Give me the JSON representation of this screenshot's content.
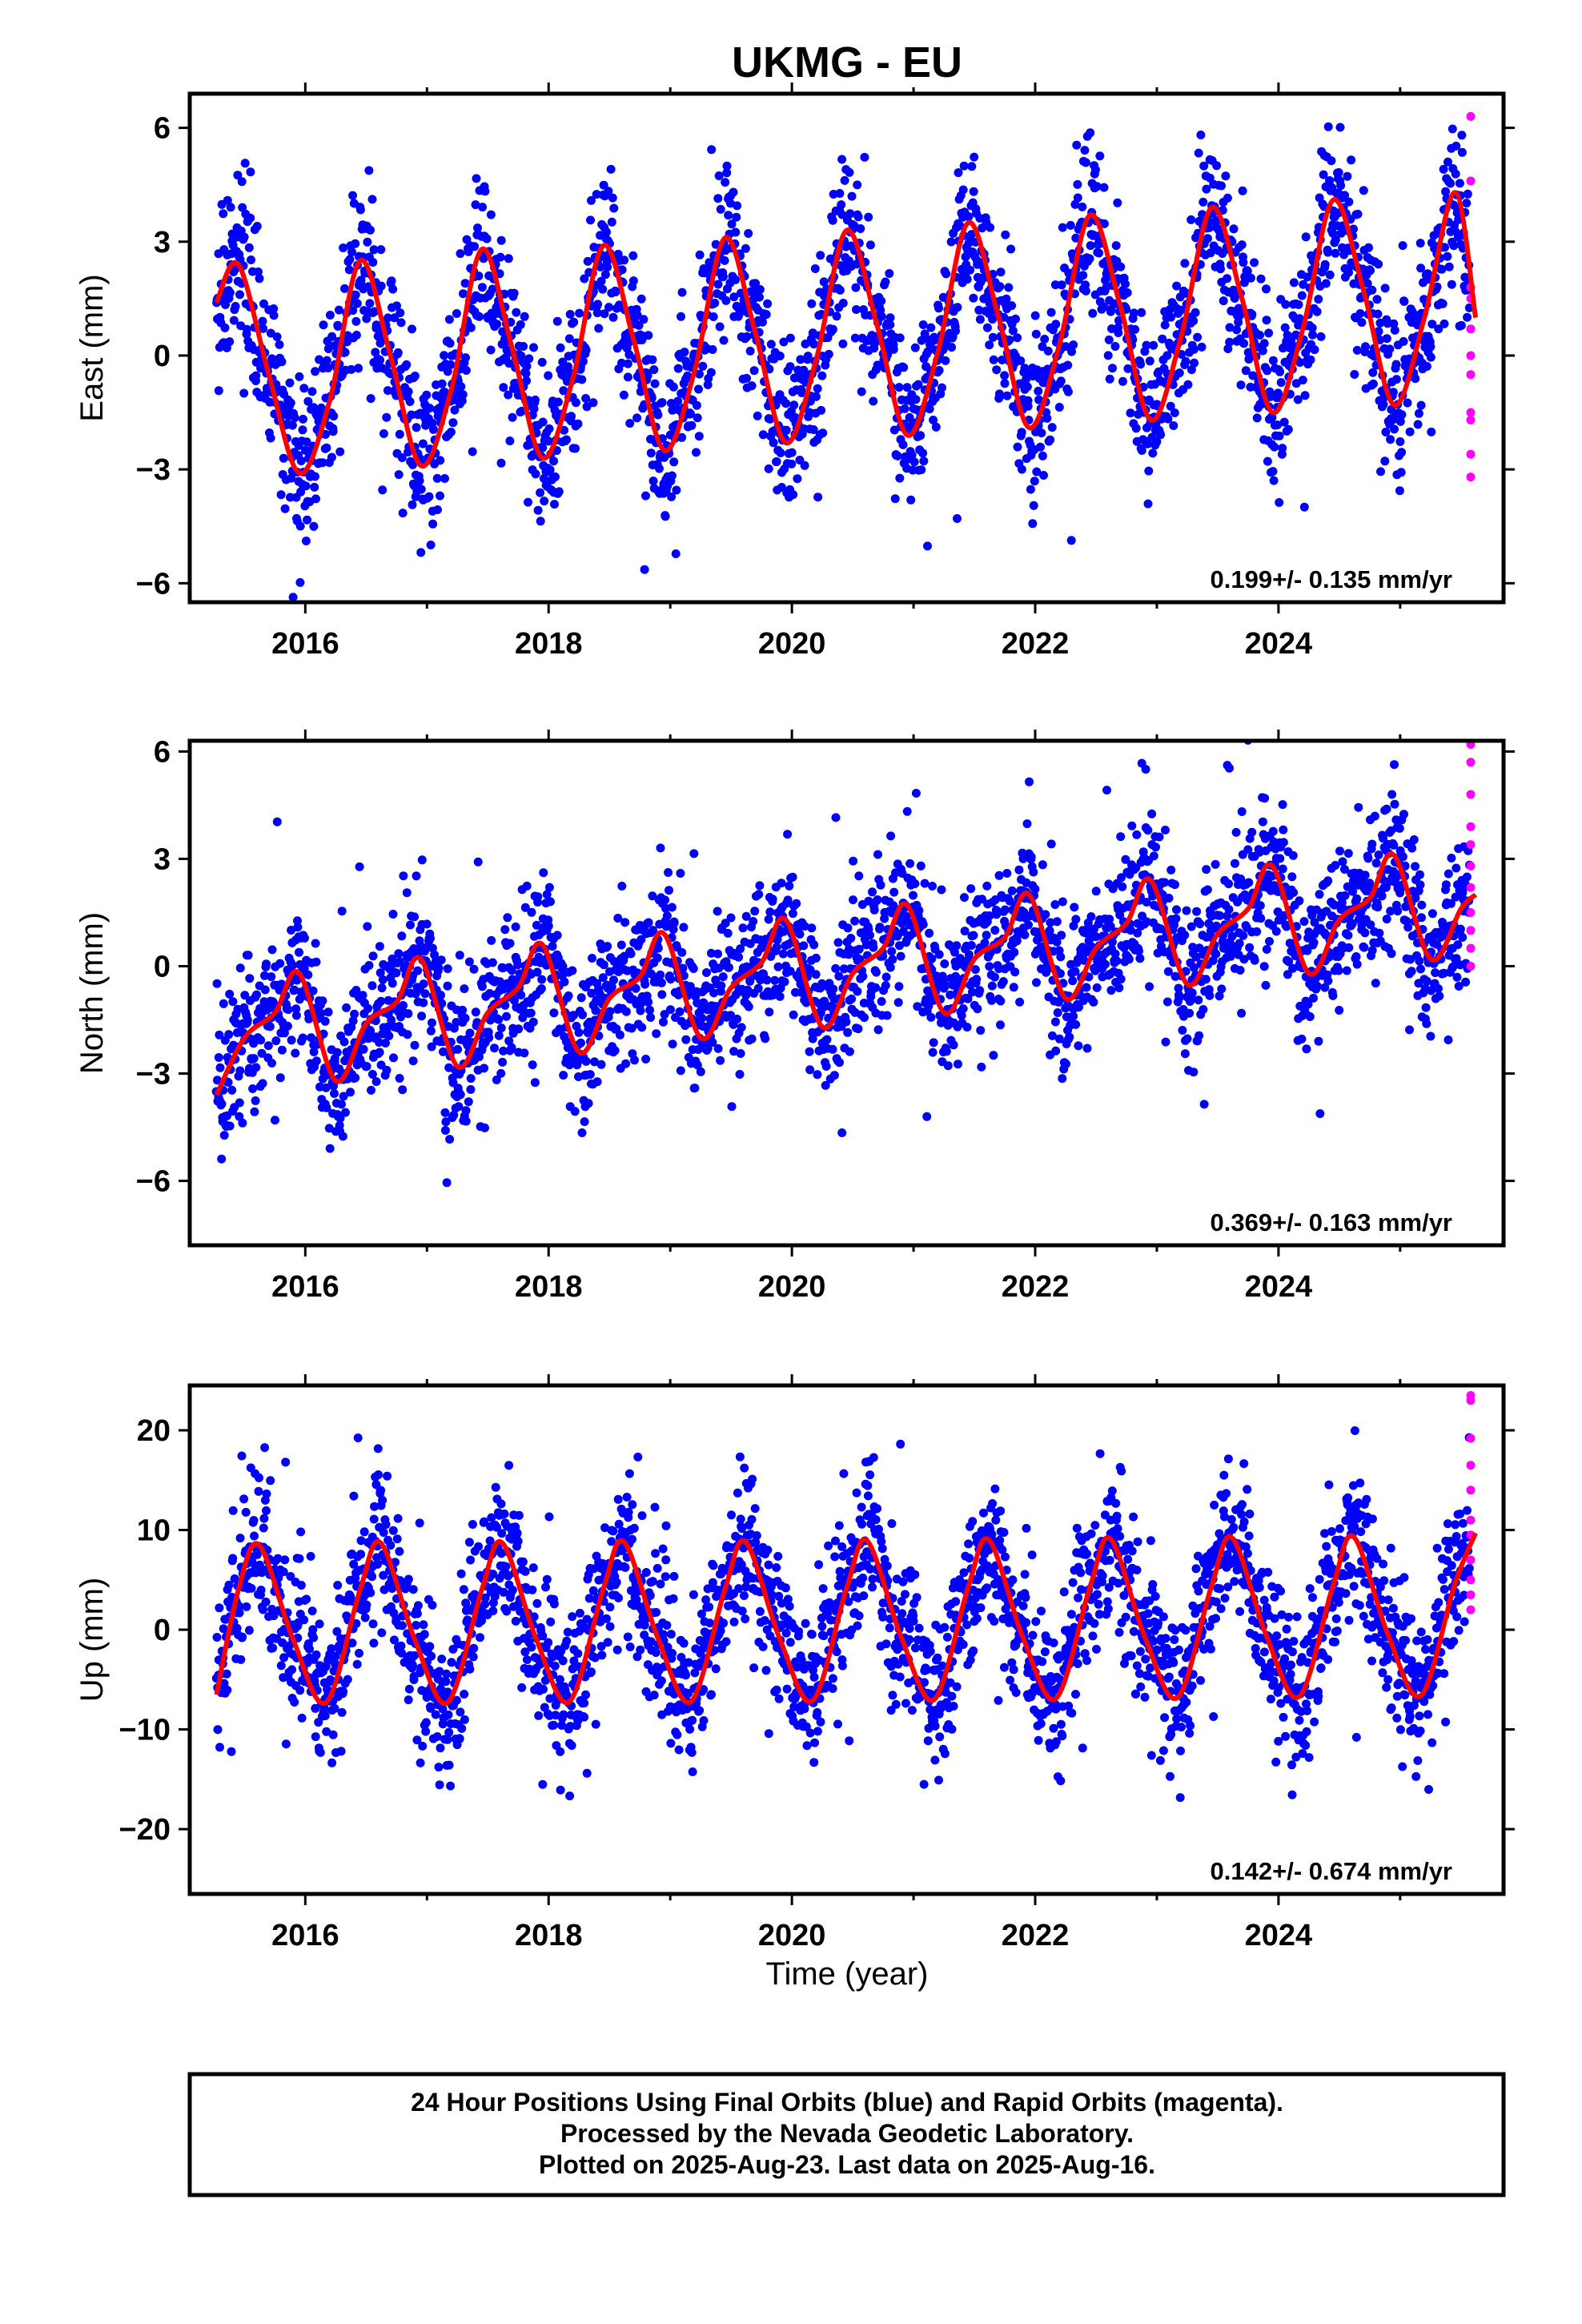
{
  "title": "UKMG - EU",
  "x_axis_label": "Time (year)",
  "footer": {
    "lines": [
      "24 Hour Positions Using Final Orbits (blue) and Rapid Orbits (magenta).",
      "Processed by the Nevada Geodetic Laboratory.",
      "Plotted on 2025-Aug-23. Last data on 2025-Aug-16."
    ]
  },
  "colors": {
    "final": "#0000ff",
    "rapid": "#ff00ff",
    "model": "#ff0000",
    "frame": "#000000"
  },
  "chart_data": [
    {
      "type": "scatter",
      "ylabel": "East (mm)",
      "rate_label": "0.199+/- 0.135 mm/yr",
      "xlim": [
        2015.05,
        2025.85
      ],
      "ylim": [
        -6.5,
        6.9
      ],
      "x_ticks": [
        2016,
        2018,
        2020,
        2022,
        2024
      ],
      "y_ticks": [
        -6,
        -3,
        0,
        3,
        6
      ],
      "model": {
        "x": [
          2015.27,
          2015.45,
          2015.7,
          2015.95,
          2016.2,
          2016.45,
          2016.7,
          2016.95,
          2017.2,
          2017.45,
          2017.7,
          2017.95,
          2018.2,
          2018.45,
          2018.7,
          2018.95,
          2019.2,
          2019.45,
          2019.7,
          2019.95,
          2020.2,
          2020.45,
          2020.7,
          2020.95,
          2021.2,
          2021.45,
          2021.7,
          2021.95,
          2022.2,
          2022.45,
          2022.7,
          2022.95,
          2023.2,
          2023.45,
          2023.7,
          2023.95,
          2024.2,
          2024.45,
          2024.7,
          2024.95,
          2025.2,
          2025.45,
          2025.62
        ],
        "y": [
          1.4,
          2.4,
          -0.5,
          -3.1,
          -1.2,
          2.5,
          0.0,
          -2.9,
          -0.9,
          2.8,
          0.2,
          -2.7,
          -0.6,
          2.9,
          0.4,
          -2.5,
          -0.4,
          3.1,
          0.6,
          -2.3,
          -0.1,
          3.3,
          0.8,
          -2.1,
          0.1,
          3.5,
          1.0,
          -1.9,
          0.3,
          3.7,
          1.3,
          -1.7,
          0.5,
          3.9,
          1.5,
          -1.5,
          0.7,
          4.1,
          1.7,
          -1.3,
          1.0,
          4.3,
          1.0
        ]
      },
      "rapid": {
        "x": 2025.58,
        "y": [
          6.3,
          4.6,
          1.8,
          1.5,
          0.7,
          0.0,
          -0.5,
          -1.5,
          -1.7,
          -2.6,
          -3.2
        ]
      }
    },
    {
      "type": "scatter",
      "ylabel": "North (mm)",
      "rate_label": "0.369+/- 0.163 mm/yr",
      "xlim": [
        2015.05,
        2025.85
      ],
      "ylim": [
        -7.8,
        6.3
      ],
      "x_ticks": [
        2016,
        2018,
        2020,
        2022,
        2024
      ],
      "y_ticks": [
        -6,
        -3,
        0,
        3,
        6
      ],
      "model": {
        "x": [
          2015.27,
          2015.5,
          2015.75,
          2015.95,
          2016.25,
          2016.5,
          2016.75,
          2016.95,
          2017.25,
          2017.5,
          2017.75,
          2017.95,
          2018.25,
          2018.5,
          2018.75,
          2018.95,
          2019.25,
          2019.5,
          2019.75,
          2019.95,
          2020.25,
          2020.5,
          2020.75,
          2020.95,
          2021.25,
          2021.5,
          2021.75,
          2021.95,
          2022.25,
          2022.5,
          2022.75,
          2022.95,
          2023.25,
          2023.5,
          2023.75,
          2023.95,
          2024.25,
          2024.5,
          2024.75,
          2024.95,
          2025.25,
          2025.5,
          2025.62
        ],
        "y": [
          -3.6,
          -2.0,
          -1.3,
          -0.2,
          -3.2,
          -1.6,
          -1.0,
          0.2,
          -2.8,
          -1.3,
          -0.6,
          0.6,
          -2.4,
          -0.9,
          -0.3,
          0.9,
          -2.0,
          -0.6,
          0.1,
          1.3,
          -1.7,
          -0.2,
          0.5,
          1.7,
          -1.3,
          0.2,
          0.8,
          2.0,
          -0.9,
          0.5,
          1.2,
          2.4,
          -0.5,
          0.9,
          1.6,
          2.8,
          -0.2,
          1.3,
          1.9,
          3.1,
          0.2,
          1.6,
          2.0
        ]
      },
      "rapid": {
        "x": 2025.58,
        "y": [
          6.2,
          5.7,
          4.8,
          3.9,
          3.4,
          2.8,
          2.2,
          1.5,
          1.0,
          0.5,
          0.0
        ]
      }
    },
    {
      "type": "scatter",
      "ylabel": "Up (mm)",
      "rate_label": "0.142+/- 0.674 mm/yr",
      "xlim": [
        2015.05,
        2025.85
      ],
      "ylim": [
        -26.5,
        24.5
      ],
      "x_ticks": [
        2016,
        2018,
        2020,
        2022,
        2024
      ],
      "y_ticks": [
        -20,
        -10,
        0,
        10,
        20
      ],
      "model": {
        "x": [
          2015.27,
          2015.45,
          2015.62,
          2015.9,
          2016.17,
          2016.45,
          2016.62,
          2016.9,
          2017.17,
          2017.45,
          2017.62,
          2017.9,
          2018.17,
          2018.45,
          2018.62,
          2018.9,
          2019.17,
          2019.45,
          2019.62,
          2019.9,
          2020.17,
          2020.45,
          2020.62,
          2020.9,
          2021.17,
          2021.45,
          2021.62,
          2021.9,
          2022.17,
          2022.45,
          2022.62,
          2022.9,
          2023.17,
          2023.45,
          2023.62,
          2023.9,
          2024.17,
          2024.45,
          2024.62,
          2024.9,
          2025.17,
          2025.45,
          2025.62
        ],
        "y": [
          -6.5,
          4.0,
          8.5,
          -1.0,
          -7.3,
          4.0,
          8.7,
          -1.0,
          -7.3,
          4.0,
          8.7,
          -1.0,
          -7.2,
          4.1,
          8.8,
          -0.9,
          -7.2,
          4.1,
          8.8,
          -0.9,
          -7.1,
          4.2,
          8.9,
          -0.8,
          -7.0,
          4.3,
          9.0,
          -0.8,
          -6.9,
          4.3,
          9.1,
          -0.7,
          -6.8,
          4.4,
          9.2,
          -0.6,
          -6.7,
          4.5,
          9.3,
          -0.5,
          -6.6,
          4.6,
          9.7
        ]
      },
      "rapid": {
        "x": 2025.58,
        "y": [
          23.5,
          23.0,
          19.2,
          16.5,
          14.0,
          11.0,
          9.5,
          7.0,
          5.0,
          3.5,
          2.0
        ]
      }
    }
  ]
}
